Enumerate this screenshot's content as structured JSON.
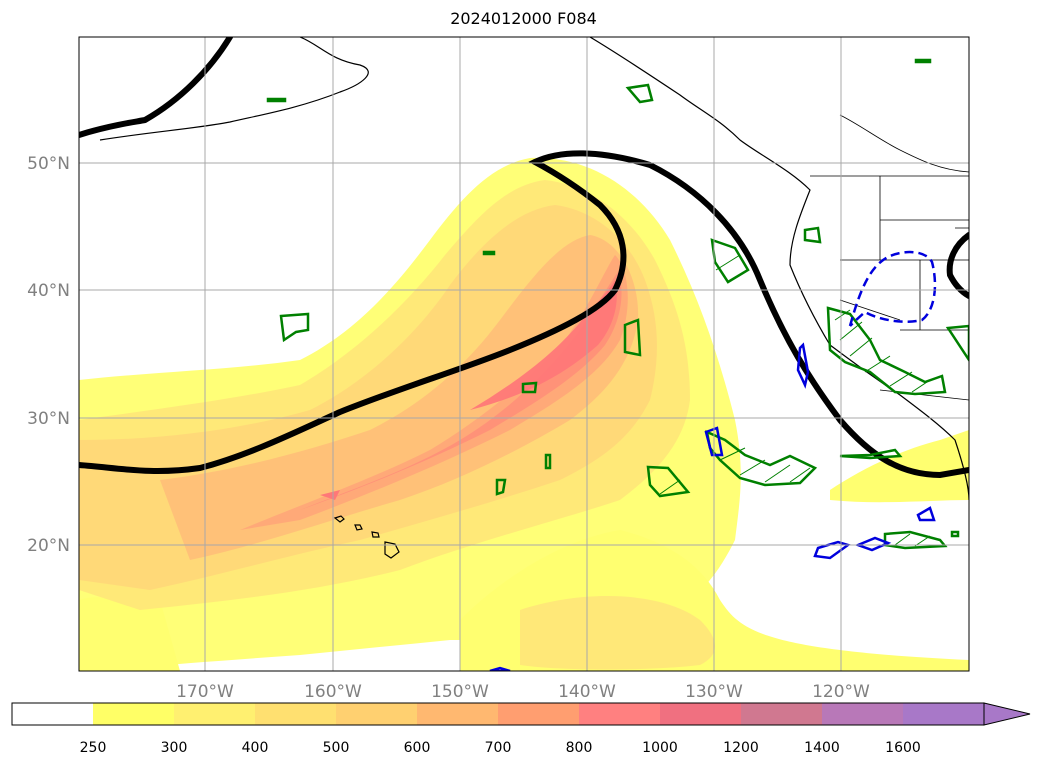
{
  "title": "2024012000 F084",
  "map": {
    "lat_labels": [
      "50°N",
      "40°N",
      "30°N",
      "20°N"
    ],
    "lon_labels": [
      "170°W",
      "160°W",
      "150°W",
      "140°W",
      "130°W",
      "120°W"
    ]
  },
  "colorbar": {
    "levels": [
      "250",
      "300",
      "400",
      "500",
      "600",
      "700",
      "800",
      "1000",
      "1200",
      "1400",
      "1600"
    ],
    "colors": [
      "#ffffff",
      "#ffff66",
      "#fff070",
      "#ffe070",
      "#ffd070",
      "#ffb870",
      "#ff9e70",
      "#ff8080",
      "#f07080",
      "#d07890",
      "#b878b8",
      "#a878c8"
    ],
    "extend": "max"
  }
}
